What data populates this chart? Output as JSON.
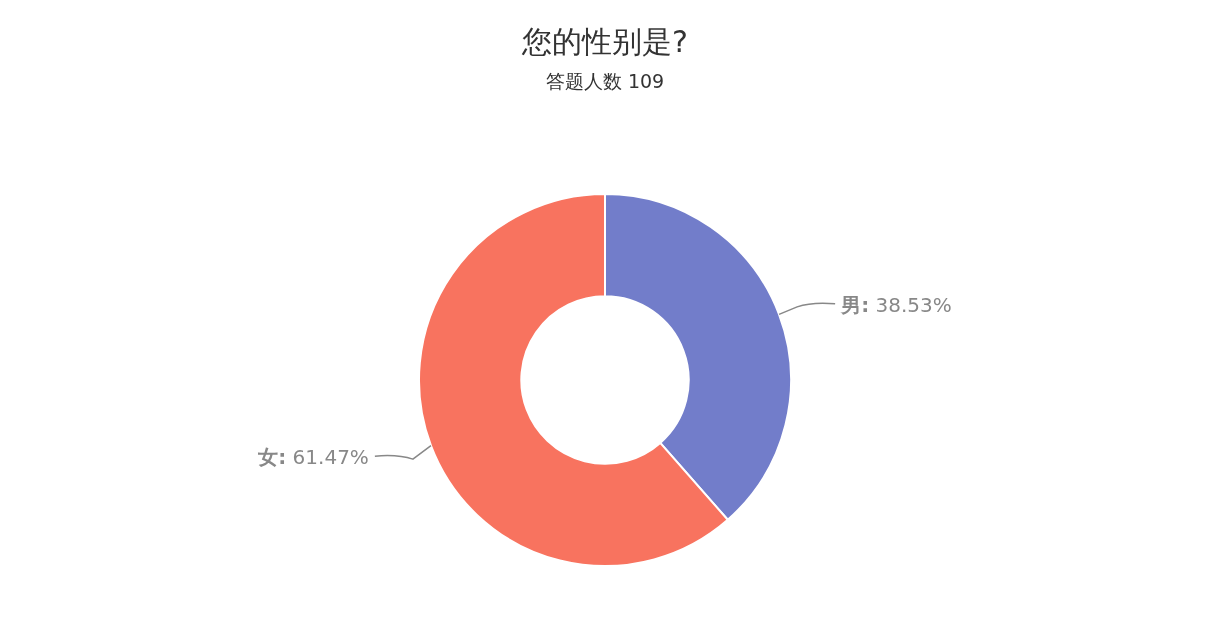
{
  "chart_data": {
    "type": "donut",
    "title": "您的性别是?",
    "subtitle": "答题人数 109",
    "categories": [
      "男",
      "女"
    ],
    "values": [
      38.53,
      61.47
    ],
    "colors": [
      "#727dca",
      "#f8735f"
    ],
    "value_labels": [
      ": 38.53%",
      ": 61.47%"
    ]
  }
}
